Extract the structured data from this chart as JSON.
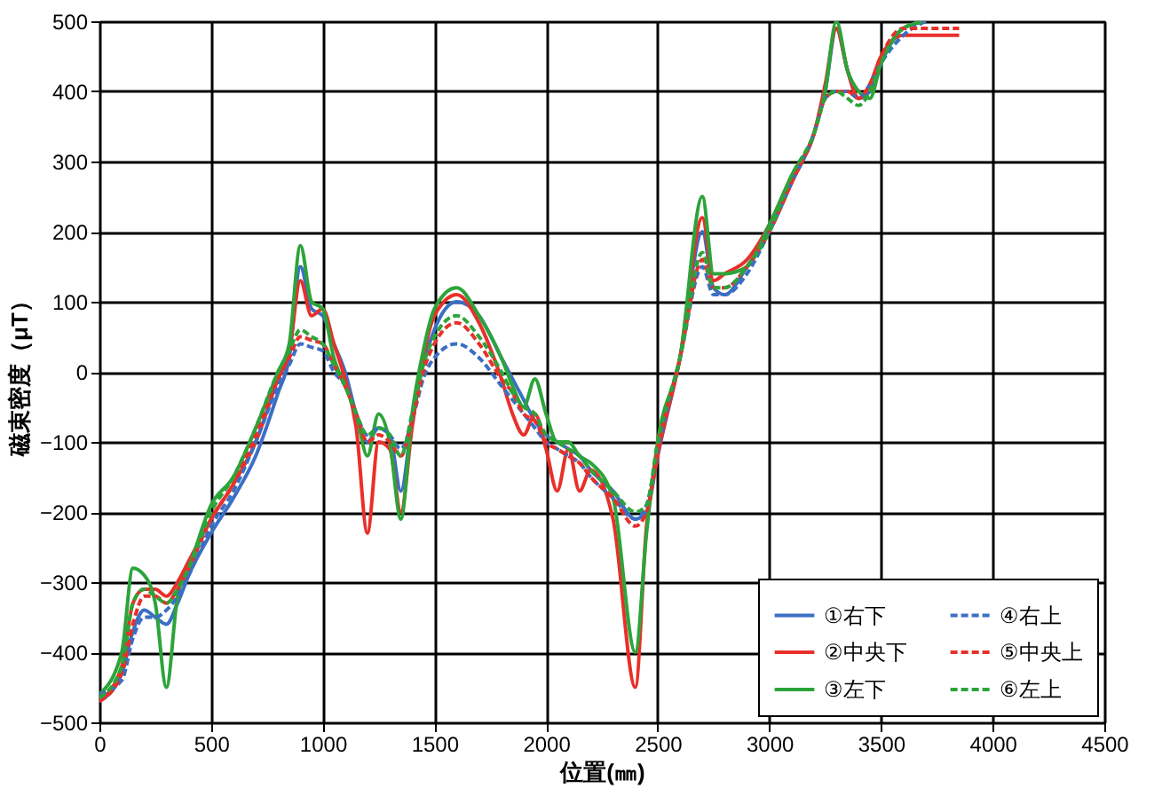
{
  "chart_data": {
    "type": "line",
    "xlabel": "位置(㎜)",
    "ylabel": "磁束密度（μT）",
    "x": [
      0,
      100,
      150,
      200,
      250,
      300,
      350,
      400,
      500,
      600,
      700,
      800,
      850,
      900,
      950,
      1000,
      1050,
      1100,
      1150,
      1200,
      1250,
      1300,
      1350,
      1400,
      1450,
      1500,
      1600,
      1700,
      1800,
      1850,
      1900,
      1950,
      2000,
      2050,
      2100,
      2150,
      2200,
      2300,
      2400,
      2450,
      2500,
      2600,
      2700,
      2750,
      2800,
      2900,
      3000,
      3100,
      3200,
      3250,
      3300,
      3350,
      3400,
      3450,
      3500,
      3600,
      3700,
      3800,
      3850
    ],
    "series": [
      {
        "name": "①右下",
        "color": "#3a6fc4",
        "line_style": "solid",
        "values": [
          -470,
          -430,
          -370,
          -340,
          -350,
          -360,
          -330,
          -290,
          -230,
          -180,
          -120,
          -30,
          20,
          150,
          90,
          80,
          40,
          0,
          -60,
          -100,
          -80,
          -90,
          -170,
          -70,
          10,
          60,
          100,
          80,
          20,
          -10,
          -40,
          -70,
          -90,
          -100,
          -110,
          -120,
          -140,
          -170,
          -210,
          -200,
          -120,
          20,
          200,
          120,
          110,
          150,
          200,
          270,
          340,
          400,
          490,
          430,
          390,
          400,
          440,
          490,
          500,
          null,
          null
        ]
      },
      {
        "name": "②中央下",
        "color": "#e8302a",
        "line_style": "solid",
        "values": [
          -470,
          -420,
          -330,
          -310,
          -310,
          -320,
          -300,
          -270,
          -210,
          -160,
          -100,
          -10,
          30,
          130,
          80,
          90,
          40,
          -10,
          -80,
          -230,
          -100,
          -110,
          -200,
          -80,
          20,
          80,
          110,
          70,
          -10,
          -60,
          -90,
          -60,
          -110,
          -170,
          -110,
          -170,
          -140,
          -210,
          -450,
          -220,
          -120,
          20,
          220,
          130,
          140,
          160,
          210,
          280,
          340,
          410,
          490,
          430,
          390,
          410,
          450,
          480,
          480,
          480,
          480
        ]
      },
      {
        "name": "③左下",
        "color": "#2ca43a",
        "line_style": "solid",
        "values": [
          -460,
          -400,
          -280,
          -290,
          -330,
          -450,
          -320,
          -280,
          -190,
          -150,
          -80,
          0,
          40,
          180,
          100,
          90,
          20,
          -20,
          -60,
          -120,
          -60,
          -100,
          -210,
          -60,
          30,
          90,
          120,
          80,
          20,
          -20,
          -50,
          -10,
          -60,
          -100,
          -100,
          -120,
          -130,
          -180,
          -400,
          -230,
          -100,
          20,
          250,
          140,
          140,
          150,
          210,
          280,
          340,
          400,
          500,
          430,
          400,
          390,
          440,
          490,
          500,
          null,
          null
        ]
      },
      {
        "name": "④右上",
        "color": "#3a6fc4",
        "line_style": "dashed",
        "values": [
          -460,
          -440,
          -380,
          -350,
          -350,
          -340,
          -320,
          -290,
          -220,
          -170,
          -100,
          -20,
          10,
          40,
          35,
          30,
          0,
          -20,
          -60,
          -90,
          -80,
          -90,
          -110,
          -70,
          -10,
          20,
          40,
          20,
          -20,
          -40,
          -60,
          -80,
          -100,
          -110,
          -120,
          -130,
          -150,
          -180,
          -210,
          -190,
          -110,
          20,
          150,
          110,
          110,
          140,
          200,
          270,
          340,
          390,
          400,
          400,
          390,
          410,
          440,
          480,
          500,
          null,
          null
        ]
      },
      {
        "name": "⑤中央上",
        "color": "#e8302a",
        "line_style": "dashed",
        "values": [
          -470,
          -430,
          -360,
          -320,
          -320,
          -330,
          -310,
          -280,
          -210,
          -160,
          -90,
          -10,
          20,
          50,
          45,
          40,
          10,
          -20,
          -60,
          -100,
          -90,
          -100,
          -120,
          -70,
          0,
          40,
          70,
          40,
          -10,
          -30,
          -60,
          -70,
          -100,
          -110,
          -120,
          -130,
          -150,
          -180,
          -220,
          -200,
          -110,
          20,
          160,
          120,
          120,
          150,
          200,
          270,
          340,
          390,
          400,
          400,
          390,
          410,
          450,
          490,
          490,
          490,
          490
        ]
      },
      {
        "name": "⑥左上",
        "color": "#2ca43a",
        "line_style": "dashed",
        "values": [
          -465,
          -420,
          -330,
          -310,
          -320,
          -330,
          -310,
          -280,
          -200,
          -150,
          -80,
          0,
          30,
          60,
          50,
          40,
          10,
          -20,
          -60,
          -90,
          -80,
          -90,
          -120,
          -60,
          10,
          50,
          80,
          50,
          0,
          -30,
          -50,
          -60,
          -90,
          -100,
          -110,
          -120,
          -140,
          -170,
          -200,
          -190,
          -100,
          20,
          170,
          120,
          120,
          150,
          200,
          280,
          340,
          390,
          400,
          390,
          380,
          400,
          440,
          490,
          500,
          null,
          null
        ]
      }
    ],
    "xlim": [
      0,
      4500
    ],
    "xticks": [
      0,
      500,
      1000,
      1500,
      2000,
      2500,
      3000,
      3500,
      4000,
      4500
    ],
    "ylim": [
      -500,
      500
    ],
    "yticks": [
      -500,
      -400,
      -300,
      -200,
      -100,
      0,
      100,
      200,
      300,
      400,
      500
    ],
    "grid": true,
    "legend": "bottom right"
  }
}
